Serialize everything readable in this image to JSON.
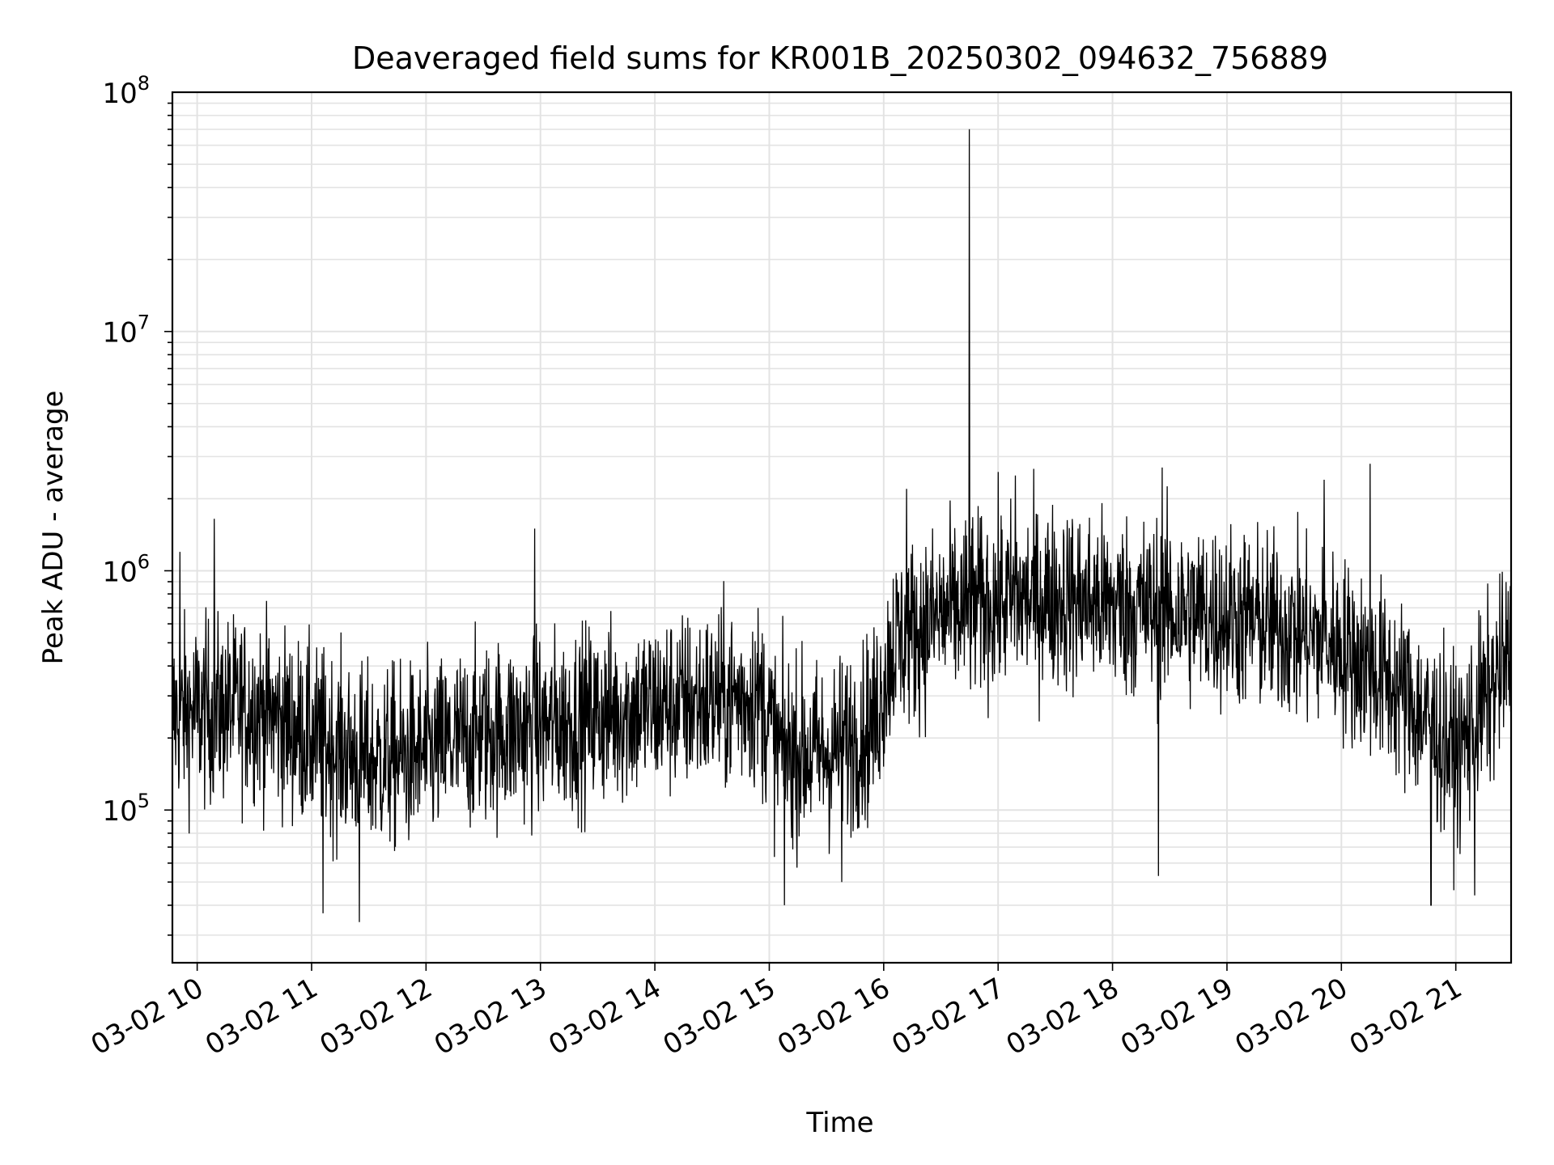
{
  "chart_data": {
    "type": "line",
    "title": "Deaveraged field sums for KR001B_20250302_094632_756889",
    "xlabel": "Time",
    "ylabel": "Peak ADU - average",
    "yscale": "log",
    "ylim": [
      23000,
      100000000
    ],
    "xlim": [
      "03-02 09:47",
      "03-02 21:29"
    ],
    "grid": true,
    "line_color": "#000000",
    "x_ticks": [
      "03-02 10",
      "03-02 11",
      "03-02 12",
      "03-02 13",
      "03-02 14",
      "03-02 15",
      "03-02 16",
      "03-02 17",
      "03-02 18",
      "03-02 19",
      "03-02 20",
      "03-02 21"
    ],
    "y_ticks": [
      {
        "value": 100000,
        "base": "10",
        "exp": "5"
      },
      {
        "value": 1000000,
        "base": "10",
        "exp": "6"
      },
      {
        "value": 10000000,
        "base": "10",
        "exp": "7"
      },
      {
        "value": 100000000,
        "base": "10",
        "exp": "8"
      }
    ],
    "series": [
      {
        "trend": [
          {
            "t": "03-02 09:47",
            "y": 250000
          },
          {
            "t": "03-02 10:30",
            "y": 270000
          },
          {
            "t": "03-02 11:00",
            "y": 200000
          },
          {
            "t": "03-02 11:30",
            "y": 160000
          },
          {
            "t": "03-02 12:00",
            "y": 170000
          },
          {
            "t": "03-02 12:30",
            "y": 210000
          },
          {
            "t": "03-02 13:00",
            "y": 220000
          },
          {
            "t": "03-02 13:30",
            "y": 250000
          },
          {
            "t": "03-02 14:00",
            "y": 270000
          },
          {
            "t": "03-02 14:55",
            "y": 300000
          },
          {
            "t": "03-02 15:05",
            "y": 180000
          },
          {
            "t": "03-02 15:30",
            "y": 170000
          },
          {
            "t": "03-02 15:55",
            "y": 230000
          },
          {
            "t": "03-02 16:05",
            "y": 500000
          },
          {
            "t": "03-02 16:30",
            "y": 650000
          },
          {
            "t": "03-02 17:00",
            "y": 750000
          },
          {
            "t": "03-02 17:30",
            "y": 780000
          },
          {
            "t": "03-02 18:00",
            "y": 720000
          },
          {
            "t": "03-02 18:30",
            "y": 680000
          },
          {
            "t": "03-02 19:00",
            "y": 650000
          },
          {
            "t": "03-02 19:30",
            "y": 580000
          },
          {
            "t": "03-02 20:00",
            "y": 480000
          },
          {
            "t": "03-02 20:30",
            "y": 320000
          },
          {
            "t": "03-02 21:00",
            "y": 170000
          },
          {
            "t": "03-02 21:29",
            "y": 450000
          }
        ],
        "spikes": [
          {
            "t": "03-02 16:45",
            "y": 70000000
          },
          {
            "t": "03-02 20:15",
            "y": 2800000
          },
          {
            "t": "03-02 18:26",
            "y": 2700000
          },
          {
            "t": "03-02 17:09",
            "y": 2500000
          },
          {
            "t": "03-02 19:51",
            "y": 2400000
          },
          {
            "t": "03-02 16:12",
            "y": 2200000
          },
          {
            "t": "03-02 12:57",
            "y": 1500000
          },
          {
            "t": "03-02 10:09",
            "y": 1650000
          },
          {
            "t": "03-02 09:51",
            "y": 1200000
          },
          {
            "t": "03-02 18:24",
            "y": 53000
          },
          {
            "t": "03-02 11:25",
            "y": 34000
          },
          {
            "t": "03-02 11:06",
            "y": 37000
          },
          {
            "t": "03-02 15:08",
            "y": 40000
          },
          {
            "t": "03-02 20:47",
            "y": 40000
          },
          {
            "t": "03-02 21:10",
            "y": 44000
          },
          {
            "t": "03-02 15:38",
            "y": 50000
          }
        ]
      }
    ]
  }
}
